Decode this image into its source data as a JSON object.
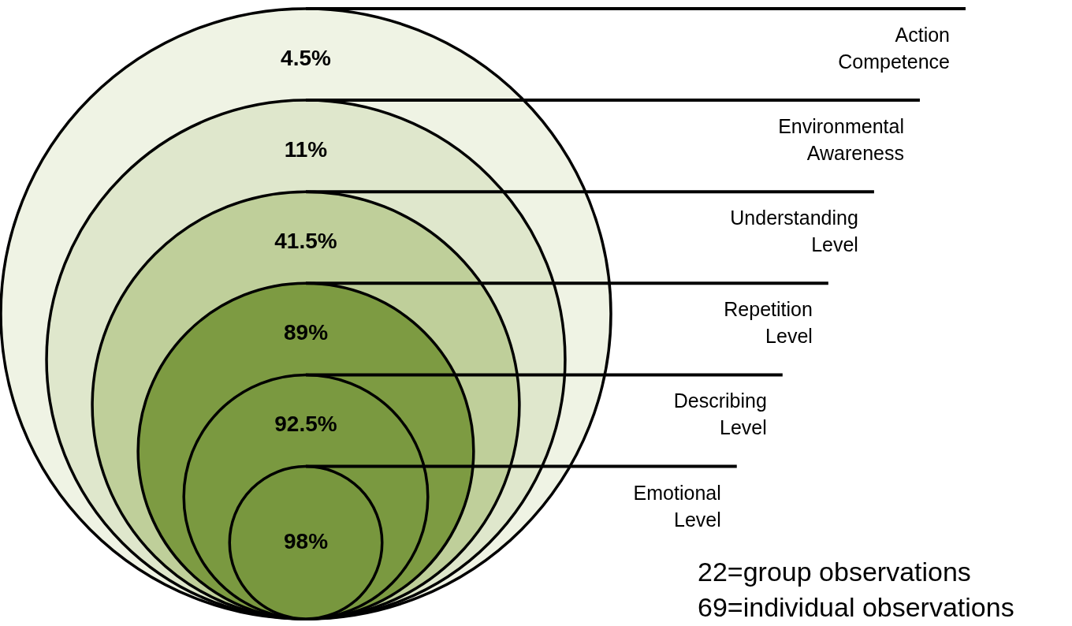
{
  "chart_data": {
    "type": "other",
    "categories": [
      "Action Competence",
      "Environmental Awareness",
      "Understanding Level",
      "Repetition Level",
      "Describing Level",
      "Emotional Level"
    ],
    "values": [
      4.5,
      11,
      41.5,
      89,
      92.5,
      98
    ],
    "value_labels": [
      "4.5%",
      "11%",
      "41.5%",
      "89%",
      "92.5%",
      "98%"
    ],
    "colors": [
      "#eff3e4",
      "#dfe7cc",
      "#bfcf9a",
      "#7d9b42",
      "#7a9940",
      "#78973e"
    ],
    "annotations": [
      "22=group observations",
      "69=individual observations"
    ]
  }
}
